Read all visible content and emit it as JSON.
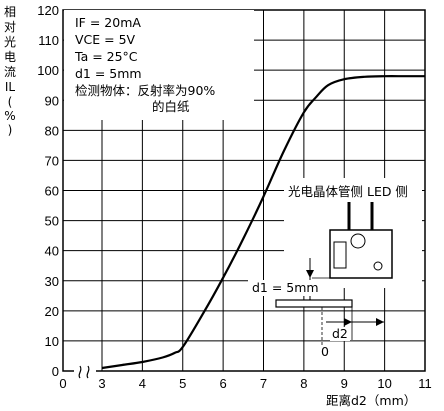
{
  "chart_data": {
    "type": "line",
    "ylabel_chars": [
      "相",
      "对",
      "光",
      "电",
      "流",
      "IL",
      "(",
      "%",
      ")"
    ],
    "xlabel": "距离d2（mm）",
    "x_ticks": [
      "0",
      "3",
      "4",
      "5",
      "6",
      "7",
      "8",
      "9",
      "10",
      "11"
    ],
    "y_ticks": [
      "0",
      "10",
      "20",
      "30",
      "40",
      "50",
      "60",
      "70",
      "80",
      "90",
      "100",
      "110",
      "120"
    ],
    "xlim": [
      3,
      11
    ],
    "ylim": [
      0,
      120
    ],
    "x_axis_break": true,
    "grid": true,
    "conditions": [
      "IF = 20mA",
      "VCE = 5V",
      "Ta = 25°C",
      "d1 = 5mm",
      "检测物体：反射率为90%",
      "的白纸"
    ],
    "series": [
      {
        "x": [
          3.0,
          3.5,
          4.0,
          4.5,
          4.8,
          5.0,
          5.5,
          6.0,
          6.5,
          7.0,
          7.5,
          8.0,
          8.3,
          8.6,
          9.0,
          9.5,
          10.0,
          10.5,
          11.0
        ],
        "y": [
          1,
          2,
          3,
          4.5,
          6,
          8,
          19,
          31,
          44,
          58,
          73,
          86,
          91,
          95,
          97,
          97.8,
          98,
          98,
          98
        ]
      }
    ],
    "inset": {
      "label": "光电晶体管侧 LED 侧",
      "d1": "d1 = 5mm",
      "d2": "d2",
      "zero": "0"
    }
  }
}
